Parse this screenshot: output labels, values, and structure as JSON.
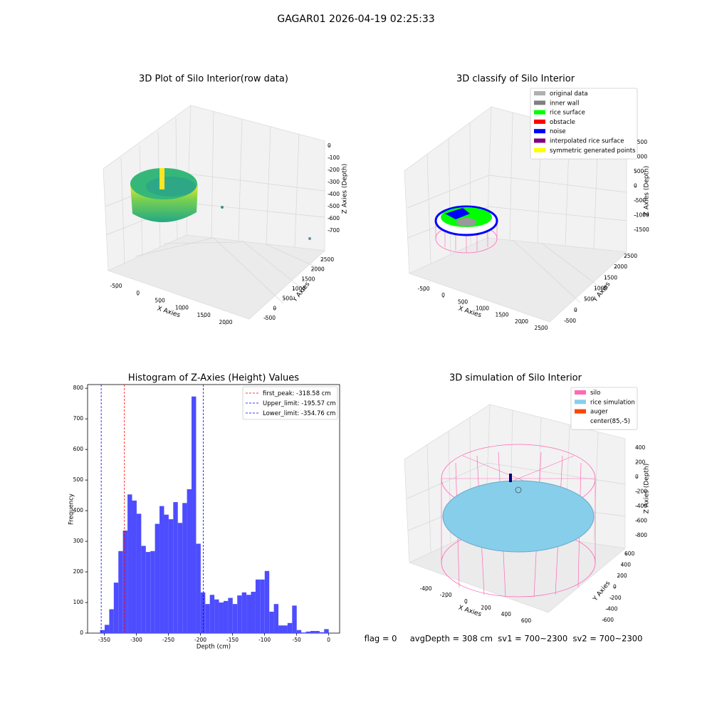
{
  "title": "GAGAR01 2026-04-19 02:25:33",
  "footer": "flag = 0     avgDepth = 308 cm  sv1 = 700~2300  sv2 = 700~2300",
  "chart_data": [
    {
      "type": "scatter3d",
      "title": "3D Plot of Silo Interior(row data)",
      "xlabel": "X Axies",
      "ylabel": "Y Axies",
      "zlabel": "Z Axies (Depth)",
      "xticks": [
        -500,
        0,
        500,
        1000,
        1500,
        2000
      ],
      "yticks": [
        -500,
        0,
        500,
        1000,
        1500,
        2000,
        2500
      ],
      "zticks": [
        0,
        -100,
        -200,
        -300,
        -400,
        -500,
        -600,
        -700
      ]
    },
    {
      "type": "scatter3d",
      "title": "3D classify of Silo Interior",
      "xlabel": "X Axies",
      "ylabel": "Y Axies",
      "zlabel": "Z Axies (Depth)",
      "xticks": [
        -500,
        0,
        500,
        1000,
        1500,
        2000,
        2500
      ],
      "yticks": [
        -500,
        0,
        500,
        1000,
        1500,
        2000,
        2500
      ],
      "zticks": [
        1500,
        1000,
        500,
        0,
        -500,
        -1000,
        -1500
      ],
      "legend": [
        {
          "name": "original data",
          "color": "#b0b0b0"
        },
        {
          "name": "inner wall",
          "color": "#808080"
        },
        {
          "name": "rice surface",
          "color": "#00ff00"
        },
        {
          "name": "obstacle",
          "color": "#ff0000"
        },
        {
          "name": "noise",
          "color": "#0000ff"
        },
        {
          "name": "interpolated rice surface",
          "color": "#800080"
        },
        {
          "name": "symmetric generated points",
          "color": "#ffff00"
        }
      ]
    },
    {
      "type": "histogram",
      "title": "Histogram of Z-Axies (Height) Values",
      "xlabel": "Depth (cm)",
      "ylabel": "Frequency",
      "color": "#4d4dff",
      "bins": [
        -356.5,
        -349.37,
        -342.24,
        -335.11,
        -327.98,
        -320.85,
        -313.72,
        -306.59,
        -299.46,
        -292.33,
        -285.2,
        -278.07,
        -270.94,
        -263.81,
        -256.68,
        -249.55,
        -242.42,
        -235.29,
        -228.16,
        -221.03,
        -213.9,
        -206.77,
        -199.64,
        -192.51,
        -185.38,
        -178.25,
        -171.12,
        -163.99,
        -156.86,
        -149.73,
        -142.6,
        -135.47,
        -128.34,
        -121.21,
        -114.08,
        -106.95,
        -99.82,
        -92.69,
        -85.56,
        -78.43,
        -71.3,
        -64.17,
        -57.04,
        -49.91,
        -42.78,
        -35.65,
        -28.52,
        -21.39,
        -14.26,
        -7.13,
        0
      ],
      "counts": [
        10,
        27,
        78,
        165,
        268,
        335,
        453,
        433,
        390,
        285,
        265,
        268,
        357,
        415,
        387,
        372,
        428,
        360,
        425,
        470,
        773,
        292,
        133,
        95,
        125,
        110,
        100,
        105,
        115,
        95,
        123,
        133,
        125,
        135,
        175,
        175,
        203,
        70,
        95,
        25,
        25,
        33,
        90,
        10,
        2,
        5,
        7,
        7,
        3,
        13
      ],
      "xlim": [
        -376,
        17
      ],
      "ylim": [
        0,
        812
      ],
      "xticks": [
        -350,
        -300,
        -250,
        -200,
        -150,
        -100,
        -50,
        0
      ],
      "yticks": [
        0,
        100,
        200,
        300,
        400,
        500,
        600,
        700,
        800
      ],
      "lines": [
        {
          "name": "first_peak: -318.58 cm",
          "value": -318.58,
          "color": "#ff0000"
        },
        {
          "name": "Upper_limit: -195.57 cm",
          "value": -195.57,
          "color": "#0000ff"
        },
        {
          "name": "Lower_limit: -354.76 cm",
          "value": -354.76,
          "color": "#0000ff"
        }
      ]
    },
    {
      "type": "surface3d",
      "title": "3D simulation of Silo Interior",
      "xlabel": "X Axies",
      "ylabel": "Y Axies",
      "zlabel": "Z Axies (Depth)",
      "xticks": [
        -400,
        -200,
        0,
        200,
        400,
        600
      ],
      "yticks": [
        -600,
        -400,
        -200,
        0,
        200,
        400,
        600
      ],
      "zticks": [
        400,
        200,
        0,
        -200,
        -400,
        -600,
        -800
      ],
      "legend": [
        {
          "name": "silo",
          "color": "#ff69b4"
        },
        {
          "name": "rice simulation",
          "color": "#87ceeb"
        },
        {
          "name": "auger",
          "color": "#ff4500"
        },
        {
          "name": "center(85,-5)",
          "color": "#ffffff"
        }
      ]
    }
  ]
}
